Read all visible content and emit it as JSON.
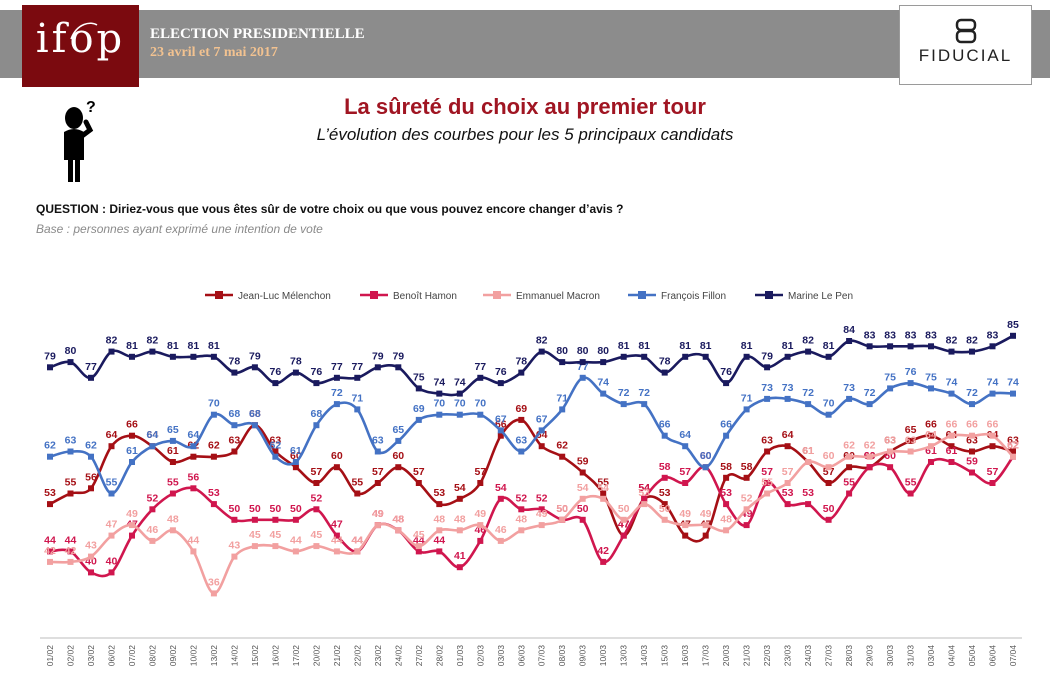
{
  "header": {
    "logo_text": "ifop",
    "election_title": "ELECTION PRESIDENTIELLE",
    "election_dates": "23 avril et 7 mai 2017",
    "sponsor": "FIDUCIAL"
  },
  "title": "La sûreté du choix au premier tour",
  "subtitle": "L’évolution des courbes pour les 5 principaux candidats",
  "question": "QUESTION : Diriez-vous que vous êtes sûr de votre choix ou que vous pouvez encore changer d’avis ?",
  "base": "Base : personnes ayant exprimé une intention de vote",
  "chart_data": {
    "type": "line",
    "legend_position": "top",
    "grid": false,
    "ylim": [
      30,
      88
    ],
    "categories": [
      "01/02",
      "02/02",
      "03/02",
      "06/02",
      "07/02",
      "08/02",
      "09/02",
      "10/02",
      "13/02",
      "14/02",
      "15/02",
      "16/02",
      "17/02",
      "20/02",
      "21/02",
      "22/02",
      "23/02",
      "24/02",
      "27/02",
      "28/02",
      "01/03",
      "02/03",
      "03/03",
      "06/03",
      "07/03",
      "08/03",
      "09/03",
      "10/03",
      "13/03",
      "14/03",
      "15/03",
      "16/03",
      "17/03",
      "20/03",
      "21/03",
      "22/03",
      "23/03",
      "24/03",
      "27/03",
      "28/03",
      "29/03",
      "30/03",
      "31/03",
      "03/04",
      "04/04",
      "05/04",
      "06/04",
      "07/04"
    ],
    "series": [
      {
        "name": "Jean-Luc Mélenchon",
        "color": "#a50f15",
        "values": [
          53,
          55,
          56,
          64,
          66,
          64,
          61,
          62,
          62,
          63,
          68,
          63,
          60,
          57,
          60,
          55,
          57,
          60,
          57,
          53,
          54,
          57,
          66,
          69,
          64,
          62,
          59,
          55,
          47,
          54,
          53,
          47,
          47,
          58,
          58,
          63,
          64,
          61,
          57,
          60,
          60,
          63,
          65,
          66,
          64,
          63,
          64,
          63
        ]
      },
      {
        "name": "Benoît Hamon",
        "color": "#d0164e",
        "values": [
          44,
          44,
          40,
          40,
          47,
          52,
          55,
          56,
          53,
          50,
          50,
          50,
          50,
          52,
          47,
          44,
          49,
          48,
          44,
          44,
          41,
          46,
          54,
          52,
          52,
          50,
          50,
          42,
          47,
          54,
          58,
          57,
          60,
          53,
          49,
          57,
          53,
          53,
          50,
          55,
          60,
          60,
          55,
          61,
          61,
          59,
          57,
          62
        ]
      },
      {
        "name": "Emmanuel Macron",
        "color": "#f2a0a0",
        "values": [
          42,
          42,
          43,
          47,
          49,
          46,
          48,
          44,
          36,
          43,
          45,
          45,
          44,
          45,
          44,
          44,
          49,
          48,
          45,
          48,
          48,
          49,
          46,
          48,
          49,
          50,
          54,
          54,
          50,
          53,
          50,
          49,
          49,
          48,
          52,
          55,
          57,
          61,
          60,
          62,
          62,
          63,
          63,
          64,
          66,
          66,
          66,
          62
        ]
      },
      {
        "name": "François Fillon",
        "color": "#4472c4",
        "values": [
          62,
          63,
          62,
          55,
          61,
          64,
          65,
          64,
          70,
          68,
          68,
          62,
          61,
          68,
          72,
          71,
          63,
          65,
          69,
          70,
          70,
          70,
          67,
          63,
          67,
          71,
          77,
          74,
          72,
          72,
          66,
          64,
          60,
          66,
          71,
          73,
          73,
          72,
          70,
          73,
          72,
          75,
          76,
          75,
          74,
          72,
          74,
          74
        ]
      },
      {
        "name": "Marine Le Pen",
        "color": "#1a1a5e",
        "values": [
          79,
          80,
          77,
          82,
          81,
          82,
          81,
          81,
          81,
          78,
          79,
          76,
          78,
          76,
          77,
          77,
          79,
          79,
          75,
          74,
          74,
          77,
          76,
          78,
          82,
          80,
          80,
          80,
          81,
          81,
          78,
          81,
          81,
          76,
          81,
          79,
          81,
          82,
          81,
          84,
          83,
          83,
          83,
          83,
          82,
          82,
          83,
          85
        ]
      }
    ]
  }
}
